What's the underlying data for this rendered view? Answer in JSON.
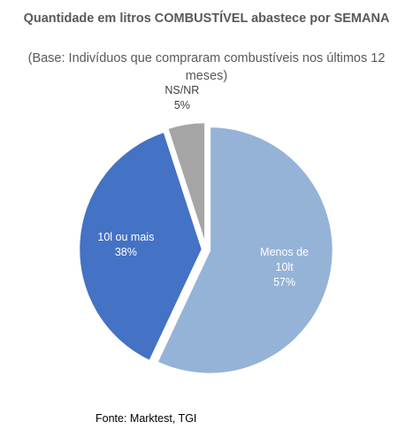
{
  "chart_data": {
    "type": "pie",
    "title": "Quantidade em litros COMBUSTÍVEL abastece por SEMANA",
    "subtitle": "(Base: Indivíduos que compraram combustíveis nos últimos 12 meses)",
    "slices": [
      {
        "label": "Menos de 10lt",
        "label_lines": [
          "Menos de",
          "10lt"
        ],
        "value": 57,
        "value_text": "57%",
        "color": "#95B3D7",
        "label_color": "#ffffff"
      },
      {
        "label": "10l ou mais",
        "label_lines": [
          "10l ou mais"
        ],
        "value": 38,
        "value_text": "38%",
        "color": "#4472C4",
        "label_color": "#ffffff"
      },
      {
        "label": "NS/NR",
        "label_lines": [
          "NS/NR"
        ],
        "value": 5,
        "value_text": "5%",
        "color": "#A5A5A5",
        "label_color": "#404040"
      }
    ],
    "start_angle_deg": 0,
    "direction": "clockwise",
    "exploded": true
  },
  "source": "Fonte: Marktest, TGI"
}
